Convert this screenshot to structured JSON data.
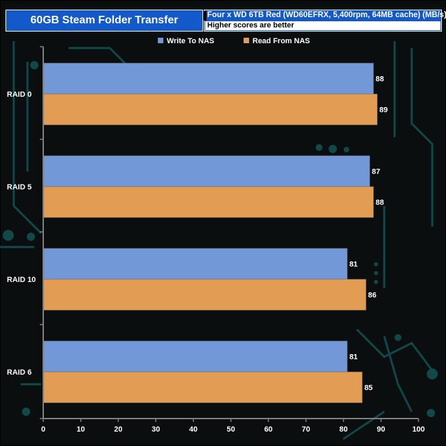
{
  "header": {
    "title": "60GB Steam Folder Transfer",
    "subtitle": "Four x WD 6TB Red (WD60EFRX, 5,400rpm, 64MB cache) (MB/s)",
    "note": "Higher scores are better"
  },
  "colors": {
    "write": "#7398d8",
    "read": "#e39c54",
    "header_bg": "#1459c9",
    "circuit": "#145a5a"
  },
  "chart_data": {
    "type": "bar",
    "orientation": "horizontal",
    "categories": [
      "RAID 0",
      "RAID 5",
      "RAID 10",
      "RAID 6"
    ],
    "series": [
      {
        "name": "Write To NAS",
        "values": [
          88,
          87,
          81,
          81
        ]
      },
      {
        "name": "Read From NAS",
        "values": [
          89,
          88,
          86,
          85
        ]
      }
    ],
    "xlim": [
      0,
      100
    ],
    "xticks": [
      0,
      10,
      20,
      30,
      40,
      50,
      60,
      70,
      80,
      90,
      100
    ],
    "legend_position": "top",
    "grid": false
  }
}
